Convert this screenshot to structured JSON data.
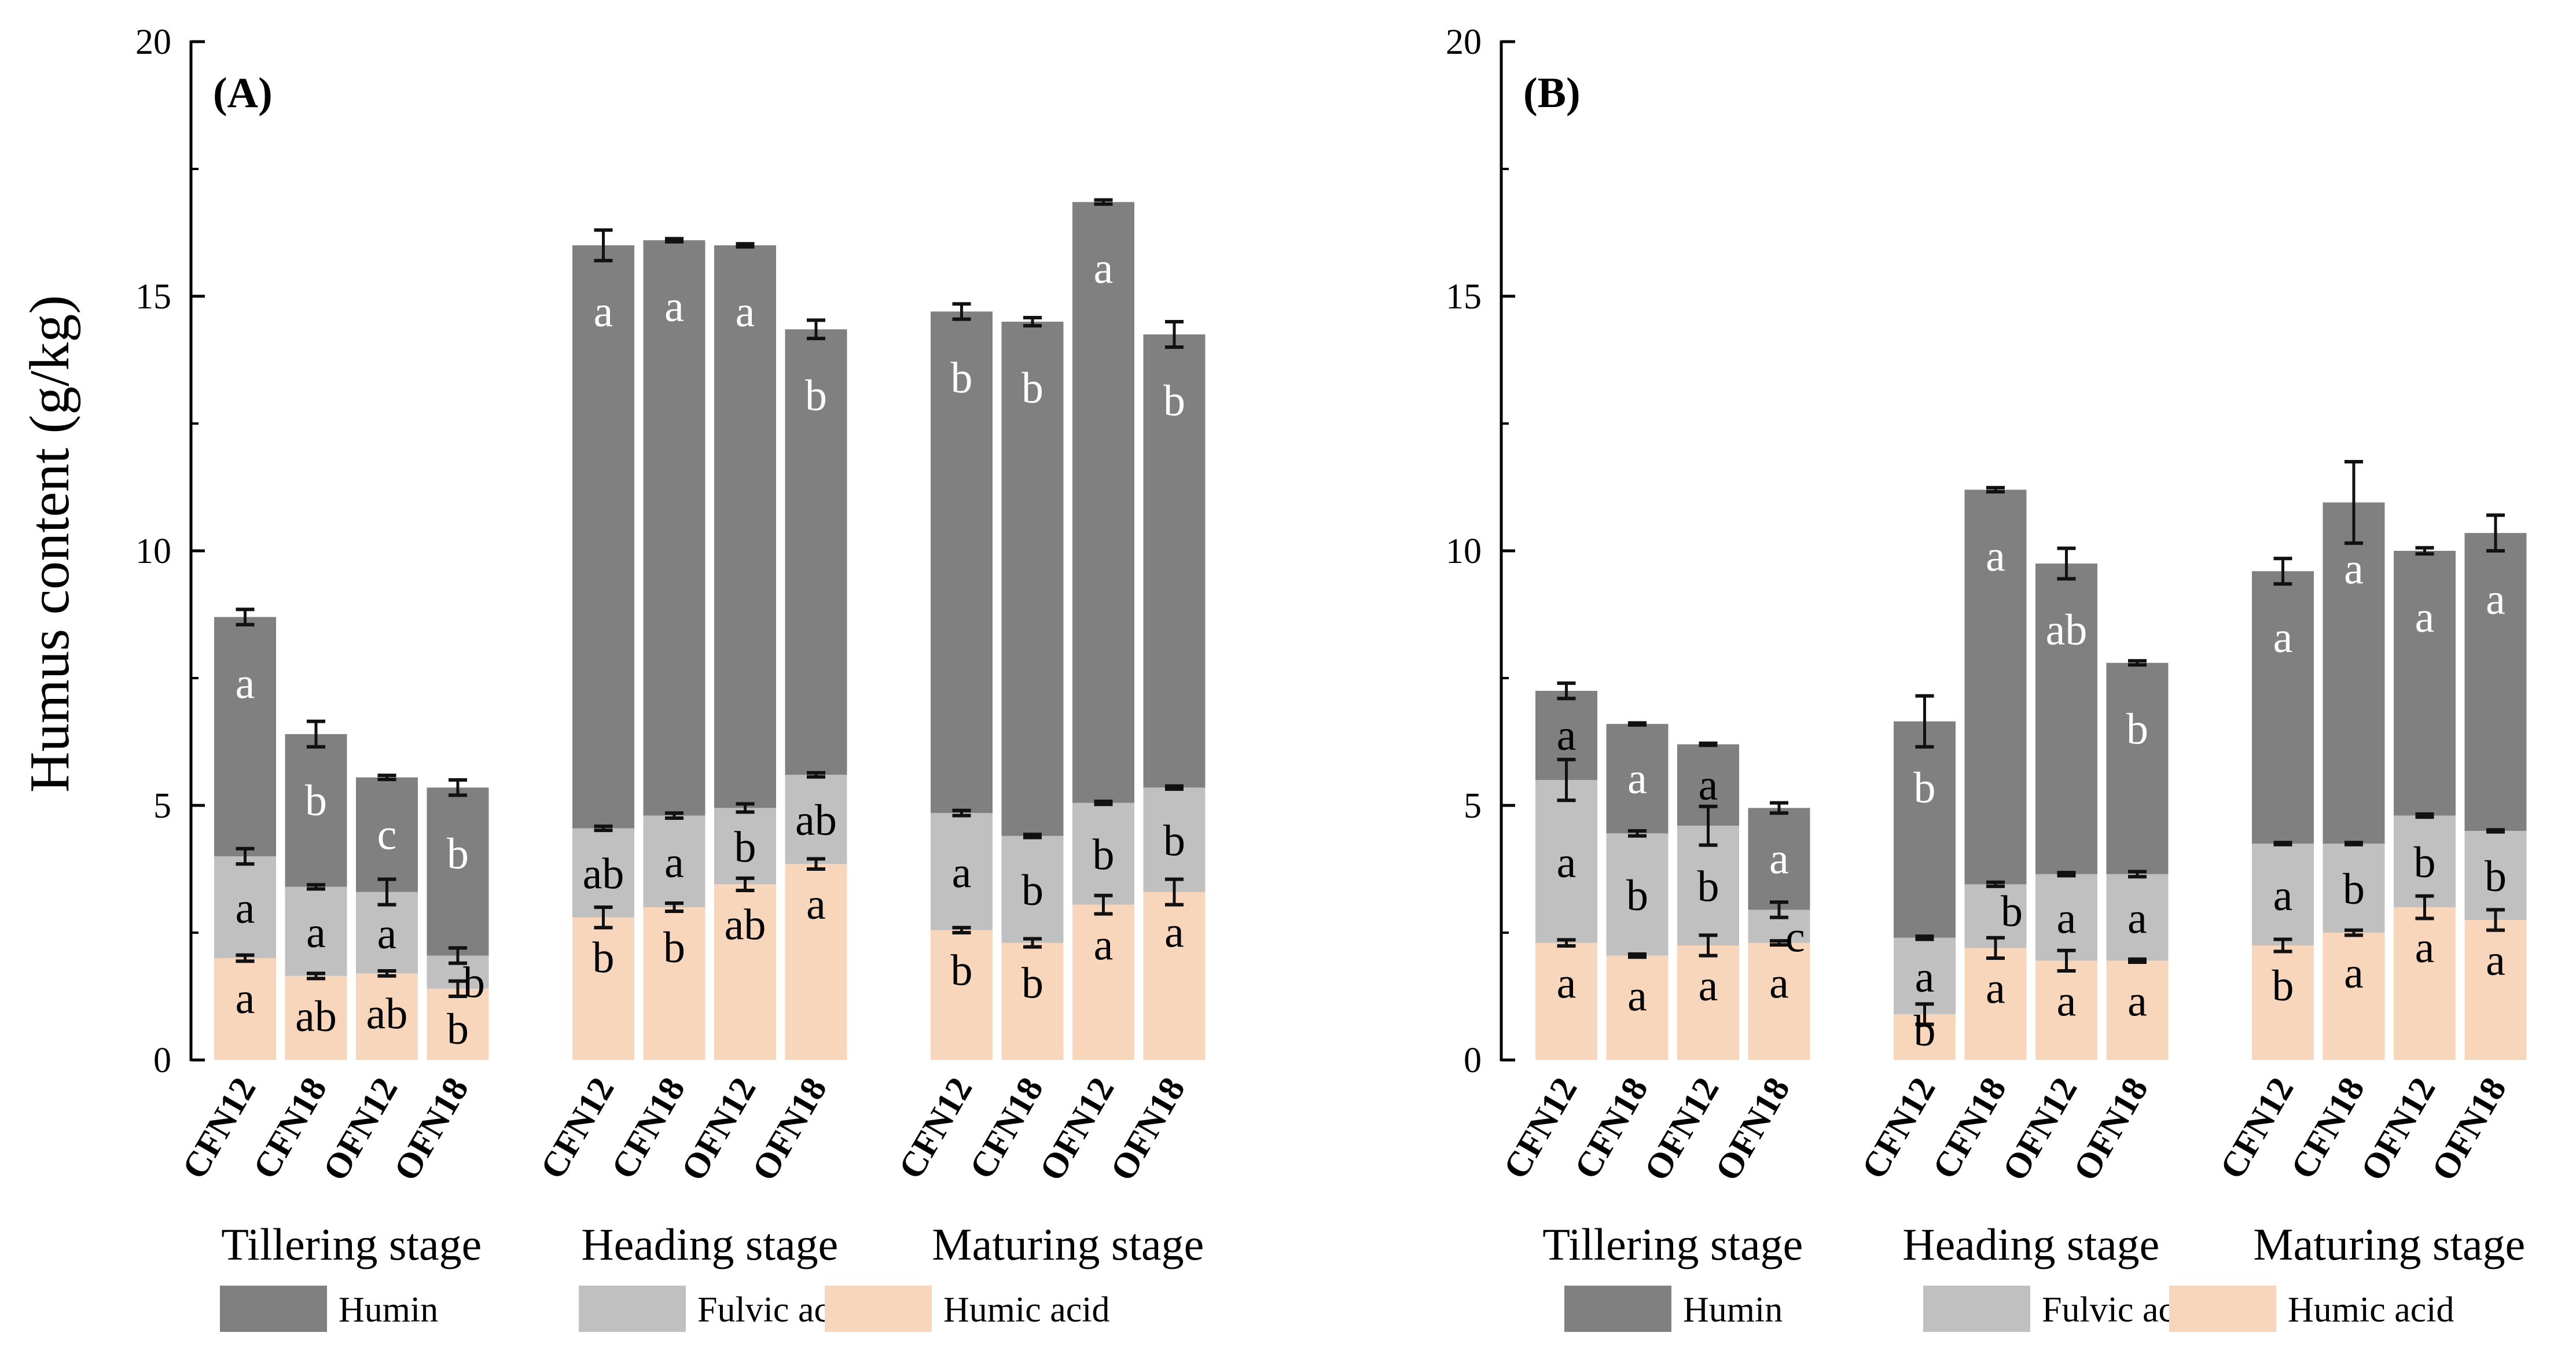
{
  "colors": {
    "humin": "#808080",
    "fulvic": "#c0c0c0",
    "humic": "#f8d6bc",
    "axis": "#000000",
    "errorbar": "#111111"
  },
  "chart_data": [
    {
      "type": "bar",
      "stacked": true,
      "panel": "(A)",
      "ylabel": "Humus content (g/kg)",
      "ylim": [
        0,
        20
      ],
      "yticks": [
        "0",
        "5",
        "10",
        "15",
        "20"
      ],
      "stages": [
        "Tillering stage",
        "Heading stage",
        "Maturing stage"
      ],
      "treatments": [
        "CFN12",
        "CFN18",
        "OFN12",
        "OFN18"
      ],
      "legend": [
        "Humin",
        "Fulvic acid",
        "Humic acid"
      ],
      "bars": [
        {
          "stage": 0,
          "treatment": "CFN12",
          "humic": 2.0,
          "humic_err": 0.06,
          "humic_letter": "a",
          "fulvic_top": 4.0,
          "fulvic_err": 0.15,
          "fulvic_letter": "a",
          "total": 8.7,
          "total_err": 0.15,
          "humin_letter": "a"
        },
        {
          "stage": 0,
          "treatment": "CFN18",
          "humic": 1.65,
          "humic_err": 0.05,
          "humic_letter": "ab",
          "fulvic_top": 3.4,
          "fulvic_err": 0.04,
          "fulvic_letter": "a",
          "total": 6.4,
          "total_err": 0.25,
          "humin_letter": "b"
        },
        {
          "stage": 0,
          "treatment": "OFN12",
          "humic": 1.7,
          "humic_err": 0.05,
          "humic_letter": "ab",
          "fulvic_top": 3.3,
          "fulvic_err": 0.25,
          "fulvic_letter": "a",
          "total": 5.55,
          "total_err": 0.04,
          "humin_letter": "c"
        },
        {
          "stage": 0,
          "treatment": "OFN18",
          "humic": 1.4,
          "humic_err": 0.15,
          "humic_letter": "b",
          "fulvic_top": 2.05,
          "fulvic_err": 0.15,
          "fulvic_letter": "b",
          "total": 5.35,
          "total_err": 0.15,
          "humin_letter": "b"
        },
        {
          "stage": 1,
          "treatment": "CFN12",
          "humic": 2.8,
          "humic_err": 0.2,
          "humic_letter": "b",
          "fulvic_top": 4.55,
          "fulvic_err": 0.04,
          "fulvic_letter": "ab",
          "total": 16.0,
          "total_err": 0.3,
          "humin_letter": "a"
        },
        {
          "stage": 1,
          "treatment": "CFN18",
          "humic": 3.0,
          "humic_err": 0.08,
          "humic_letter": "b",
          "fulvic_top": 4.8,
          "fulvic_err": 0.05,
          "fulvic_letter": "a",
          "total": 16.1,
          "total_err": 0.03,
          "humin_letter": "a"
        },
        {
          "stage": 1,
          "treatment": "OFN12",
          "humic": 3.45,
          "humic_err": 0.12,
          "humic_letter": "ab",
          "fulvic_top": 4.95,
          "fulvic_err": 0.08,
          "fulvic_letter": "b",
          "total": 16.0,
          "total_err": 0.03,
          "humin_letter": "a"
        },
        {
          "stage": 1,
          "treatment": "OFN18",
          "humic": 3.85,
          "humic_err": 0.1,
          "humic_letter": "a",
          "fulvic_top": 5.6,
          "fulvic_err": 0.04,
          "fulvic_letter": "ab",
          "total": 14.35,
          "total_err": 0.18,
          "humin_letter": "b"
        },
        {
          "stage": 2,
          "treatment": "CFN12",
          "humic": 2.55,
          "humic_err": 0.05,
          "humic_letter": "b",
          "fulvic_top": 4.85,
          "fulvic_err": 0.05,
          "fulvic_letter": "a",
          "total": 14.7,
          "total_err": 0.15,
          "humin_letter": "b"
        },
        {
          "stage": 2,
          "treatment": "CFN18",
          "humic": 2.3,
          "humic_err": 0.08,
          "humic_letter": "b",
          "fulvic_top": 4.4,
          "fulvic_err": 0.03,
          "fulvic_letter": "b",
          "total": 14.5,
          "total_err": 0.08,
          "humin_letter": "b"
        },
        {
          "stage": 2,
          "treatment": "OFN12",
          "humic": 3.05,
          "humic_err": 0.18,
          "humic_letter": "a",
          "fulvic_top": 5.05,
          "fulvic_err": 0.03,
          "fulvic_letter": "b",
          "total": 16.85,
          "total_err": 0.04,
          "humin_letter": "a"
        },
        {
          "stage": 2,
          "treatment": "OFN18",
          "humic": 3.3,
          "humic_err": 0.25,
          "humic_letter": "a",
          "fulvic_top": 5.35,
          "fulvic_err": 0.03,
          "fulvic_letter": "b",
          "total": 14.25,
          "total_err": 0.25,
          "humin_letter": "b"
        }
      ]
    },
    {
      "type": "bar",
      "stacked": true,
      "panel": "(B)",
      "ylabel": "",
      "ylim": [
        0,
        20
      ],
      "yticks": [
        "0",
        "5",
        "10",
        "15",
        "20"
      ],
      "stages": [
        "Tillering stage",
        "Heading stage",
        "Maturing stage"
      ],
      "treatments": [
        "CFN12",
        "CFN18",
        "OFN12",
        "OFN18"
      ],
      "legend": [
        "Humin",
        "Fulvic acid",
        "Humic acid"
      ],
      "bars": [
        {
          "stage": 0,
          "treatment": "CFN12",
          "humic": 2.3,
          "humic_err": 0.06,
          "humic_letter": "a",
          "fulvic_top": 5.5,
          "fulvic_err": 0.4,
          "fulvic_letter": "a",
          "total": 7.25,
          "total_err": 0.15,
          "humin_letter": "a"
        },
        {
          "stage": 0,
          "treatment": "CFN18",
          "humic": 2.05,
          "humic_err": 0.03,
          "humic_letter": "a",
          "fulvic_top": 4.45,
          "fulvic_err": 0.05,
          "fulvic_letter": "b",
          "total": 6.6,
          "total_err": 0.02,
          "humin_letter": "a"
        },
        {
          "stage": 0,
          "treatment": "OFN12",
          "humic": 2.25,
          "humic_err": 0.2,
          "humic_letter": "a",
          "fulvic_top": 4.6,
          "fulvic_err": 0.38,
          "fulvic_letter": "b",
          "total": 6.2,
          "total_err": 0.02,
          "humin_letter": "a"
        },
        {
          "stage": 0,
          "treatment": "OFN18",
          "humic": 2.3,
          "humic_err": 0.04,
          "humic_letter": "a",
          "fulvic_top": 2.95,
          "fulvic_err": 0.15,
          "fulvic_letter": "c",
          "total": 4.95,
          "total_err": 0.1,
          "humin_letter": "a"
        },
        {
          "stage": 1,
          "treatment": "CFN12",
          "humic": 0.9,
          "humic_err": 0.2,
          "humic_letter": "b",
          "fulvic_top": 2.4,
          "fulvic_err": 0.03,
          "fulvic_letter": "a",
          "total": 6.65,
          "total_err": 0.5,
          "humin_letter": "b"
        },
        {
          "stage": 1,
          "treatment": "CFN18",
          "humic": 2.2,
          "humic_err": 0.2,
          "humic_letter": "a",
          "fulvic_top": 3.45,
          "fulvic_err": 0.04,
          "fulvic_letter": "b",
          "total": 11.2,
          "total_err": 0.04,
          "humin_letter": "a"
        },
        {
          "stage": 1,
          "treatment": "OFN12",
          "humic": 1.95,
          "humic_err": 0.2,
          "humic_letter": "a",
          "fulvic_top": 3.65,
          "fulvic_err": 0.03,
          "fulvic_letter": "a",
          "total": 9.75,
          "total_err": 0.3,
          "humin_letter": "ab"
        },
        {
          "stage": 1,
          "treatment": "OFN18",
          "humic": 1.95,
          "humic_err": 0.03,
          "humic_letter": "a",
          "fulvic_top": 3.65,
          "fulvic_err": 0.05,
          "fulvic_letter": "a",
          "total": 7.8,
          "total_err": 0.04,
          "humin_letter": "b"
        },
        {
          "stage": 2,
          "treatment": "CFN12",
          "humic": 2.25,
          "humic_err": 0.12,
          "humic_letter": "b",
          "fulvic_top": 4.25,
          "fulvic_err": 0.02,
          "fulvic_letter": "a",
          "total": 9.6,
          "total_err": 0.25,
          "humin_letter": "a"
        },
        {
          "stage": 2,
          "treatment": "CFN18",
          "humic": 2.5,
          "humic_err": 0.05,
          "humic_letter": "a",
          "fulvic_top": 4.25,
          "fulvic_err": 0.02,
          "fulvic_letter": "b",
          "total": 10.95,
          "total_err": 0.8,
          "humin_letter": "a"
        },
        {
          "stage": 2,
          "treatment": "OFN12",
          "humic": 3.0,
          "humic_err": 0.22,
          "humic_letter": "a",
          "fulvic_top": 4.8,
          "fulvic_err": 0.03,
          "fulvic_letter": "b",
          "total": 10.0,
          "total_err": 0.06,
          "humin_letter": "a"
        },
        {
          "stage": 2,
          "treatment": "OFN18",
          "humic": 2.75,
          "humic_err": 0.2,
          "humic_letter": "a",
          "fulvic_top": 4.5,
          "fulvic_err": 0.02,
          "fulvic_letter": "b",
          "total": 10.35,
          "total_err": 0.35,
          "humin_letter": "a"
        }
      ]
    }
  ]
}
